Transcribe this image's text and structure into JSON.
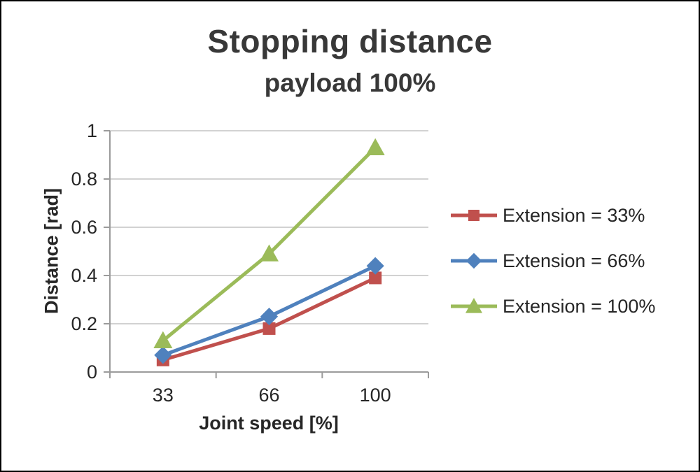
{
  "chart_data": {
    "type": "line",
    "title": "Stopping distance",
    "subtitle": "payload 100%",
    "xlabel": "Joint speed [%]",
    "ylabel": "Distance [rad]",
    "categories": [
      "33",
      "66",
      "100"
    ],
    "ylim": [
      0,
      1
    ],
    "yticks": [
      0,
      0.2,
      0.4,
      0.6,
      0.8,
      1
    ],
    "ytick_labels": [
      "0",
      "0.2",
      "0.4",
      "0.6",
      "0.8",
      "1"
    ],
    "grid": true,
    "legend_position": "right",
    "series": [
      {
        "name": "Extension = 33%",
        "marker": "square",
        "color": "#C0504D",
        "values": [
          0.05,
          0.18,
          0.39
        ]
      },
      {
        "name": "Extension = 66%",
        "marker": "diamond",
        "color": "#4F81BD",
        "values": [
          0.07,
          0.23,
          0.44
        ]
      },
      {
        "name": "Extension = 100%",
        "marker": "triangle",
        "color": "#9BBB59",
        "values": [
          0.13,
          0.49,
          0.93
        ]
      }
    ],
    "colors": {
      "gridline": "#d2d2d2",
      "axis": "#9b9b9b",
      "text": "#262626",
      "title": "#383838",
      "background": "#ffffff",
      "border": "#000000"
    }
  }
}
